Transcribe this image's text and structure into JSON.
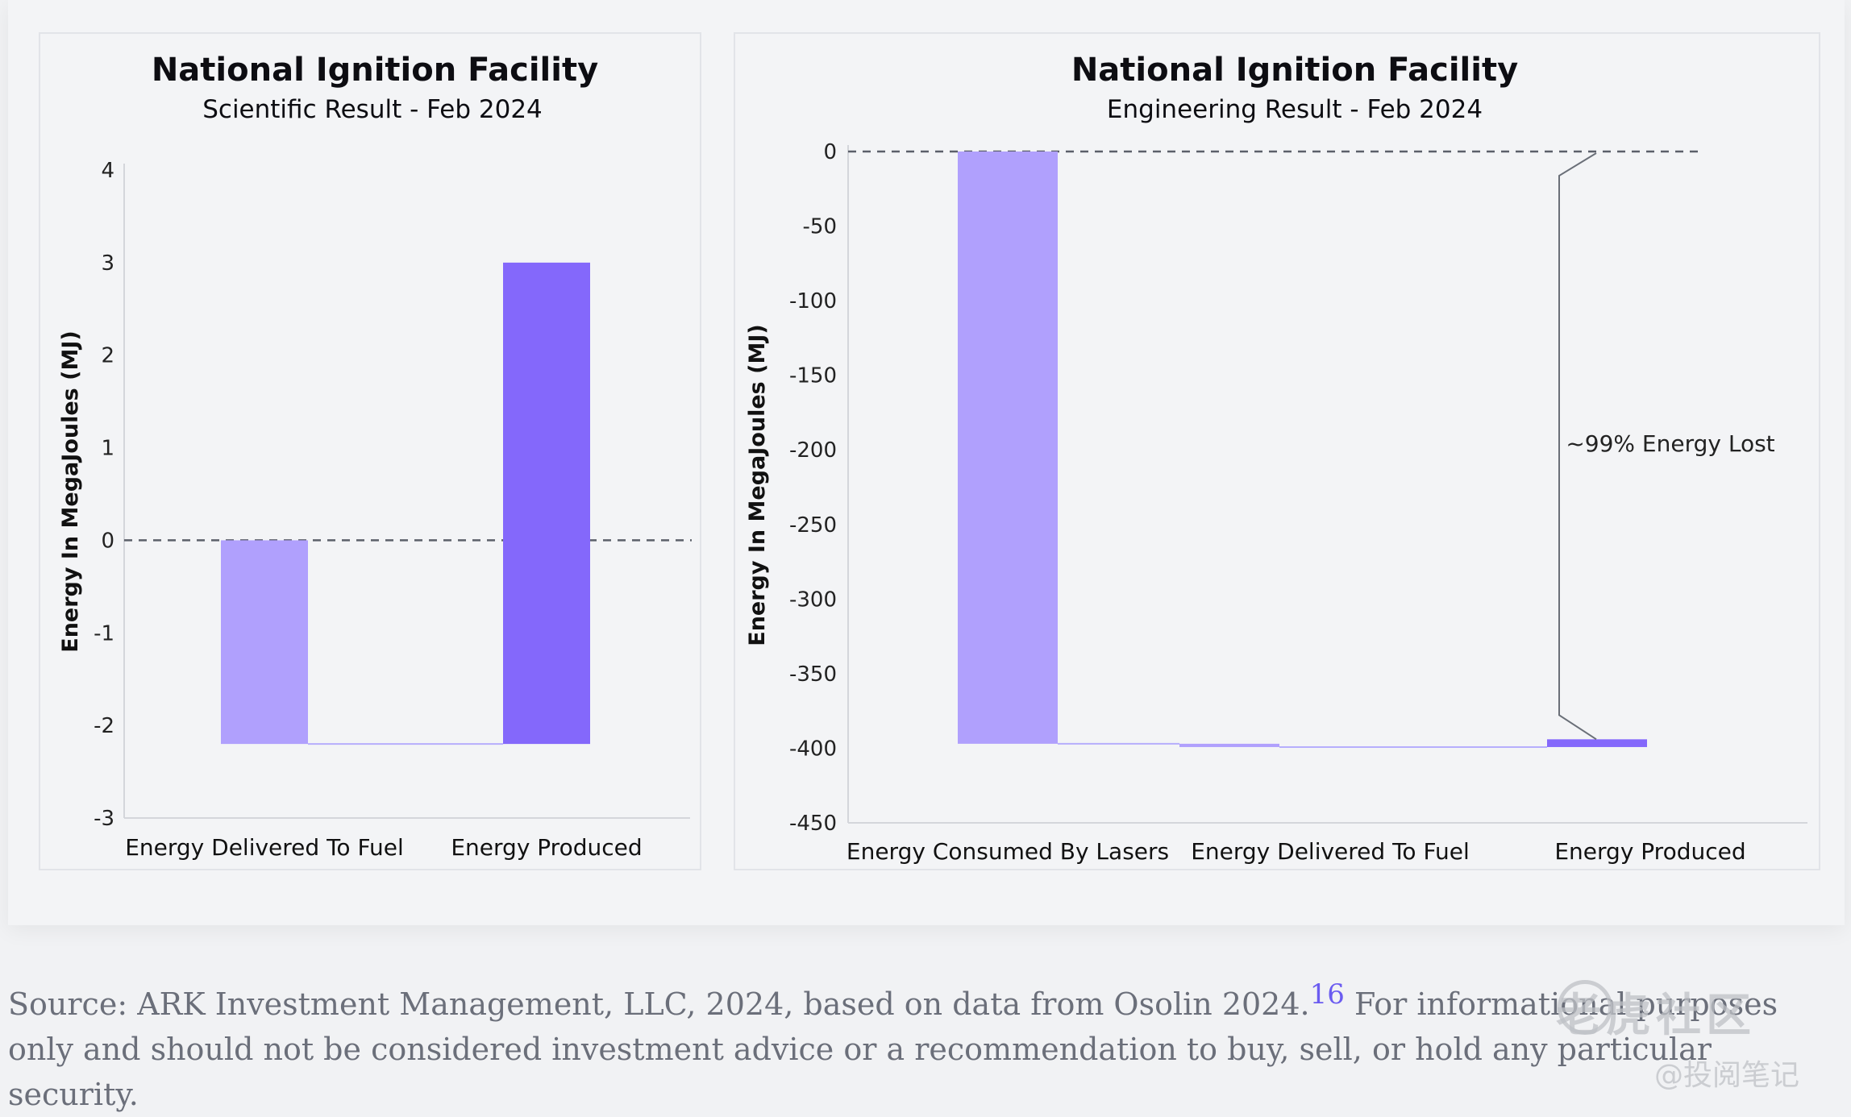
{
  "chart_data": [
    {
      "type": "bar",
      "title": "National Ignition Facility",
      "subtitle": "Scientific Result - Feb 2024",
      "ylabel": "Energy In MegaJoules (MJ)",
      "categories": [
        "Energy Delivered To Fuel",
        "Energy Produced"
      ],
      "bars": [
        {
          "category": "Energy Delivered To Fuel",
          "start": 0,
          "end": -2.2,
          "color": "#b0a0fd"
        },
        {
          "category": "Energy Produced",
          "start": -2.2,
          "end": 3.0,
          "color": "#8468fb"
        }
      ],
      "ylim": [
        -3,
        4
      ],
      "yticks": [
        "4",
        "3",
        "2",
        "1",
        "0",
        "-1",
        "-2",
        "-3"
      ],
      "reference_line": 0
    },
    {
      "type": "bar",
      "title": "National Ignition Facility",
      "subtitle": "Engineering Result - Feb 2024",
      "ylabel": "Energy In MegaJoules (MJ)",
      "categories": [
        "Energy Consumed By Lasers",
        "Energy Delivered To Fuel",
        "Energy Produced"
      ],
      "bars": [
        {
          "category": "Energy Consumed By Lasers",
          "start": 0,
          "end": -397,
          "color": "#b0a0fd"
        },
        {
          "category": "Energy Delivered To Fuel",
          "start": -397,
          "end": -399.2,
          "color": "#b0a0fd"
        },
        {
          "category": "Energy Produced",
          "start": -399.2,
          "end": -394,
          "color": "#8468fb"
        }
      ],
      "ylim": [
        -450,
        0
      ],
      "yticks": [
        "0",
        "-50",
        "-100",
        "-150",
        "-200",
        "-250",
        "-300",
        "-350",
        "-400",
        "-450"
      ],
      "reference_line": 0,
      "annotation": "~99% Energy Lost"
    }
  ],
  "source": {
    "text1": "Source: ARK Investment Management, LLC, 2024, based on data from Osolin 2024.",
    "footnote": "16",
    "text2": " For informational purposes only and should not be considered investment advice or a recommendation to buy, sell, or hold any particular security."
  },
  "watermark": {
    "top": "老虎社区",
    "bottom": "@投阅笔记"
  }
}
